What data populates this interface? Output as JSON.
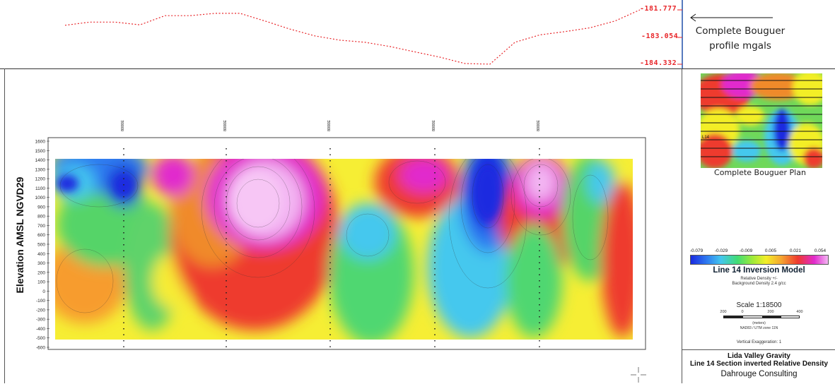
{
  "bouguer_profile": {
    "tick_labels": [
      "-181.777",
      "-183.054",
      "-184.332"
    ],
    "caption_line1": "Complete Bouguer",
    "caption_line2": "profile mgals",
    "color": "#e8262a"
  },
  "section": {
    "ylabel": "Elevation AMSL NGVD29",
    "yticks": [
      "1600",
      "1500",
      "1400",
      "1300",
      "1200",
      "1100",
      "1000",
      "900",
      "800",
      "700",
      "600",
      "500",
      "400",
      "300",
      "200",
      "100",
      "0",
      "-100",
      "-200",
      "-300",
      "-400",
      "-500",
      "-600"
    ],
    "station_labels": [
      "8000E",
      "8000E",
      "8000E",
      "8000E",
      "8000E"
    ]
  },
  "plan": {
    "caption": "Complete Bouguer Plan",
    "line_label": "L14"
  },
  "legend": {
    "ticks": [
      "-0.079",
      "-0.029",
      "-0.009",
      "0.005",
      "0.021",
      "0.054"
    ],
    "title": "Line 14 Inversion Model",
    "sub1": "Relative Density +/-",
    "sub2": "Background Density 2.4 g/cc",
    "scale": "Scale 1:18500",
    "scalebar_ticks": [
      "200",
      "0",
      "200",
      "400"
    ],
    "scalebar_unit1": "(meters)",
    "scalebar_unit2": "NAD83 / UTM zone 11N",
    "vertical_exaggeration": "Vertical Exaggeration: 1",
    "colors": [
      "#1a2ae0",
      "#2f7cf0",
      "#43c6ee",
      "#41dc74",
      "#9eea3a",
      "#f3ee28",
      "#f5a531",
      "#ee3a2e",
      "#e12acd",
      "#f3b6f3"
    ]
  },
  "title_block": {
    "line1": "Lida Valley Gravity",
    "line2": "Line 14 Section inverted Relative Density",
    "line3": "Dahrouge Consulting"
  },
  "chart_data": [
    {
      "type": "line",
      "title": "",
      "ylabel": "Complete Bouguer profile mgals",
      "ylim": [
        -184.332,
        -181.777
      ],
      "series": [
        {
          "values": [
            -182.5,
            -182.35,
            -182.35,
            -182.48,
            -182.05,
            -182.05,
            -181.94,
            -181.94,
            -182.3,
            -182.68,
            -183.0,
            -183.2,
            -183.3,
            -183.5,
            -183.75,
            -184.0,
            -184.3,
            -184.33,
            -183.3,
            -182.95,
            -182.8,
            -182.62,
            -182.3,
            -181.777
          ]
        }
      ]
    },
    {
      "type": "heatmap",
      "title": "Line 14 Inversion Model",
      "ylabel": "Elevation AMSL NGVD29",
      "ylim": [
        -600,
        1600
      ],
      "colorbar_ticks": [
        -0.079,
        -0.029,
        -0.009,
        0.005,
        0.021,
        0.054
      ],
      "colorbar_label": "Relative Density +/-"
    }
  ]
}
